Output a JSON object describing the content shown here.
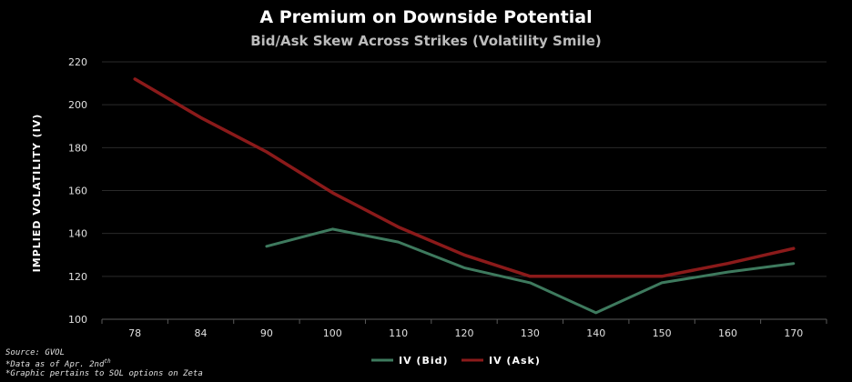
{
  "chart_data": {
    "type": "line",
    "title": "A Premium on Downside Potential",
    "subtitle": "Bid/Ask Skew Across Strikes (Volatility Smile)",
    "ylabel": "IMPLIED VOLATILITY (IV)",
    "xlabel": "",
    "categories": [
      "78",
      "84",
      "90",
      "100",
      "110",
      "120",
      "130",
      "140",
      "150",
      "160",
      "170"
    ],
    "ylim": [
      100,
      220
    ],
    "yticks": [
      100,
      120,
      140,
      160,
      180,
      200,
      220
    ],
    "grid": true,
    "legend_position": "bottom-center",
    "series": [
      {
        "name": "IV (Bid)",
        "color": "#3e7a5e",
        "values": [
          null,
          null,
          134,
          142,
          136,
          124,
          117,
          103,
          117,
          122,
          126
        ]
      },
      {
        "name": "IV (Ask)",
        "color": "#8b1a1a",
        "values": [
          212,
          194,
          178,
          159,
          143,
          130,
          120,
          120,
          120,
          126,
          133
        ]
      }
    ]
  },
  "notes": {
    "source": "Source: GVOL",
    "date": "*Data as of Apr. 2nd",
    "date_suffix": "th",
    "graphic": "*Graphic pertains to SOL options on Zeta"
  }
}
